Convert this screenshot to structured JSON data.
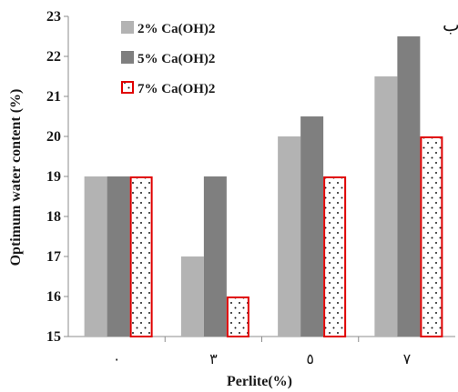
{
  "chart_data": {
    "type": "bar",
    "categories": [
      "٠",
      "٣",
      "٥",
      "٧"
    ],
    "series": [
      {
        "name": "2% Ca(OH)2",
        "values": [
          19,
          17,
          20,
          21.5
        ],
        "color": "#b3b3b3",
        "pattern": "solid"
      },
      {
        "name": "5% Ca(OH)2",
        "values": [
          19,
          19,
          20.5,
          22.5
        ],
        "color": "#7f7f7f",
        "pattern": "solid"
      },
      {
        "name": "7% Ca(OH)2",
        "values": [
          19,
          16,
          19,
          20
        ],
        "color": "#ffffff",
        "edge_color": "#e00000",
        "pattern": "dots"
      }
    ],
    "xlabel": "Perlite(%)",
    "ylabel": "Optimum water content (%)",
    "ylim": [
      15,
      23
    ],
    "yticks": [
      "15",
      "16",
      "17",
      "18",
      "19",
      "20",
      "21",
      "22",
      "23"
    ],
    "legend_position": "top-left",
    "grid": false,
    "corner_mark": "ب"
  }
}
